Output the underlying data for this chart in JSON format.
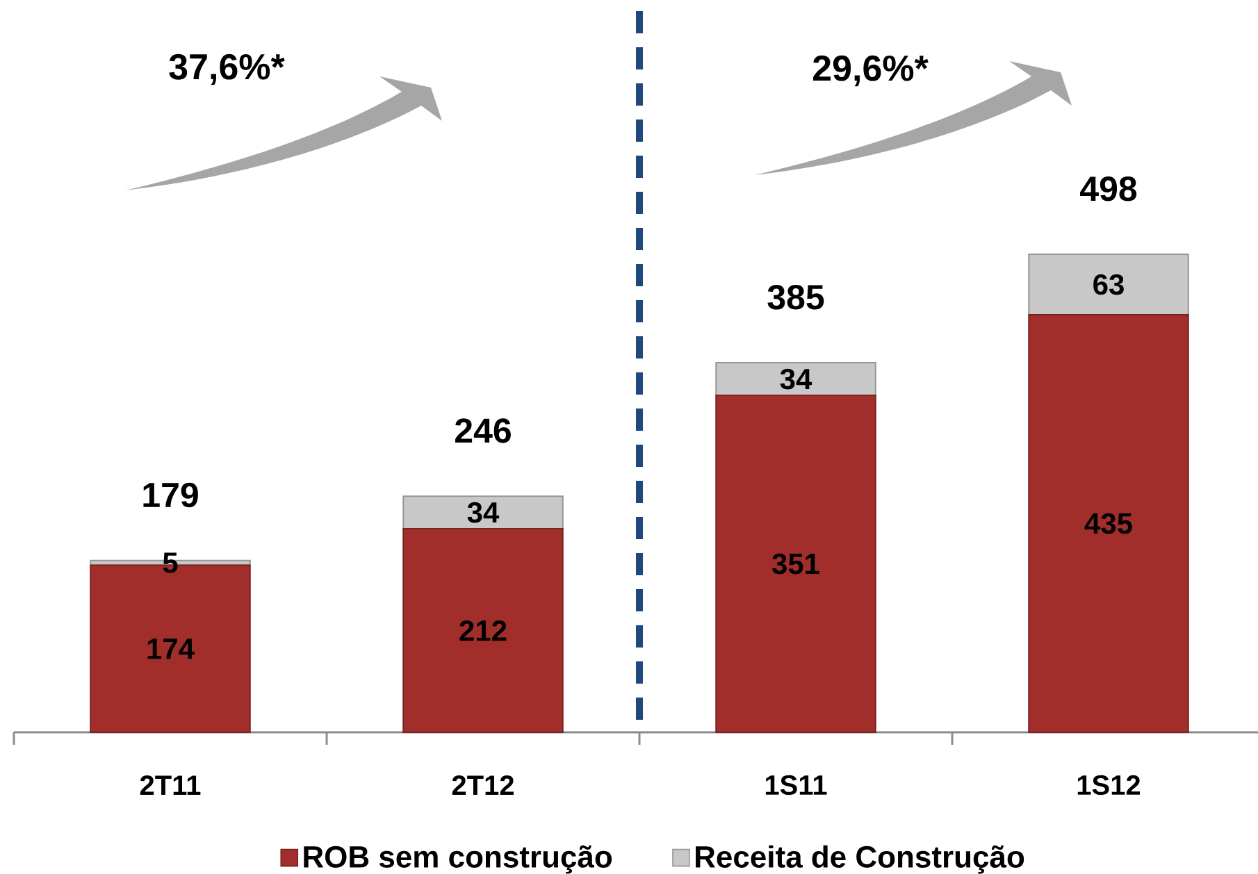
{
  "chart_data": {
    "type": "bar",
    "stacked": true,
    "categories": [
      "2T11",
      "2T12",
      "1S11",
      "1S12"
    ],
    "series": [
      {
        "name": "ROB sem construção",
        "color": "#a22e2c",
        "values": [
          174,
          212,
          351,
          435
        ]
      },
      {
        "name": "Receita de Construção",
        "color": "#c8c8c8",
        "values": [
          5,
          34,
          34,
          63
        ]
      }
    ],
    "data_labels": true,
    "totals": [
      "179",
      "246",
      "385",
      "498"
    ],
    "annotations": [
      "37,6%*",
      "29,6%*"
    ],
    "legend": "bottom"
  }
}
